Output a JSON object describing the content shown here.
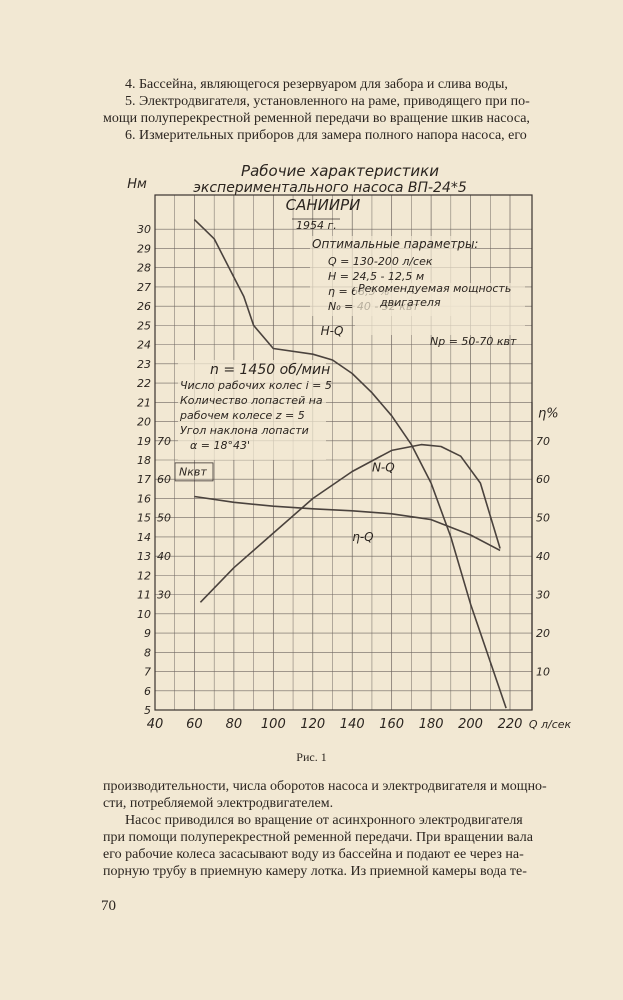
{
  "text_top": [
    "4. Бассейна, являющегося резервуаром для забора и слива воды,",
    "5. Электродвигателя, установленного на раме, приводящего при по-",
    "мощи полуперекрестной ременной передачи во вращение шкив насоса,",
    "6. Измерительных приборов для замера полного напора насоса, его"
  ],
  "figure": {
    "title_line1": "Рабочие характеристики",
    "title_line2": "экспериментального насоса ВП-24*5",
    "org": "САНИИРИ",
    "year": "1954 г.",
    "optimal_header": "Оптимальные параметры:",
    "optimal_lines": [
      "Q = 130-200 л/сек",
      "H = 24,5 - 12,5 м",
      "η = 68,5 %",
      "N₀ = 40 - 52 квт"
    ],
    "recommended_line1": "Рекомендуемая мощность",
    "recommended_line2": "двигателя",
    "recommended_value": "Nр = 50-70 квт",
    "pump_lines": [
      "n = 1450 об/мин",
      "Число рабочих колес i = 5",
      "Количество лопастей на",
      "рабочем колесе z = 5",
      "Угол наклона лопасти",
      "α = 18°43'"
    ],
    "caption": "Рис. 1"
  },
  "chart_data": {
    "type": "line",
    "xlabel": "Q л/сек",
    "xlim": [
      40,
      220
    ],
    "x_ticks": [
      40,
      60,
      80,
      100,
      120,
      140,
      160,
      180,
      200,
      220
    ],
    "axes": {
      "H": {
        "label": "Hм",
        "range": [
          5,
          31
        ],
        "ticks": [
          5,
          6,
          7,
          8,
          9,
          10,
          11,
          12,
          13,
          14,
          15,
          16,
          17,
          18,
          19,
          20,
          21,
          22,
          23,
          24,
          25,
          26,
          27,
          28,
          29,
          30
        ]
      },
      "N": {
        "label": "Nквт",
        "range": [
          0,
          80
        ],
        "ticks": [
          30,
          40,
          50,
          60,
          70
        ]
      },
      "eta": {
        "label": "η%",
        "range": [
          0,
          80
        ],
        "ticks": [
          10,
          20,
          30,
          40,
          50,
          60,
          70
        ]
      }
    },
    "series": [
      {
        "name": "H-Q",
        "axis": "H",
        "x": [
          60,
          70,
          80,
          85,
          90,
          100,
          120,
          130,
          140,
          150,
          160,
          170,
          180,
          190,
          200,
          210,
          218
        ],
        "y": [
          30.5,
          29.5,
          27.5,
          26.5,
          25,
          23.8,
          23.5,
          23.2,
          22.5,
          21.5,
          20.3,
          18.8,
          16.8,
          14,
          10.5,
          7.5,
          5.1
        ]
      },
      {
        "name": "N-Q",
        "axis": "N",
        "x": [
          60,
          80,
          100,
          120,
          140,
          160,
          180,
          200,
          215
        ],
        "y": [
          55.5,
          54,
          53,
          52.3,
          51.8,
          51,
          49.5,
          45.5,
          41.5
        ]
      },
      {
        "name": "η-Q",
        "axis": "eta",
        "x": [
          63,
          80,
          100,
          120,
          140,
          160,
          175,
          185,
          195,
          205,
          215
        ],
        "y": [
          28,
          37,
          46,
          55,
          62,
          67.5,
          69,
          68.5,
          66,
          59,
          42
        ]
      }
    ]
  },
  "text_bottom": [
    "производительности, числа оборотов насоса и электродвигателя и мощно-",
    "сти, потребляемой электродвигателем.",
    "Насос приводился во вращение от асинхронного электродвигателя",
    "при помощи полуперекрестной ременной передачи. При вращении вала",
    "его рабочие колеса засасывают воду из бассейна и подают ее через на-",
    "порную трубу в приемную камеру лотка. Из приемной камеры вода те-"
  ],
  "page_number": "70"
}
